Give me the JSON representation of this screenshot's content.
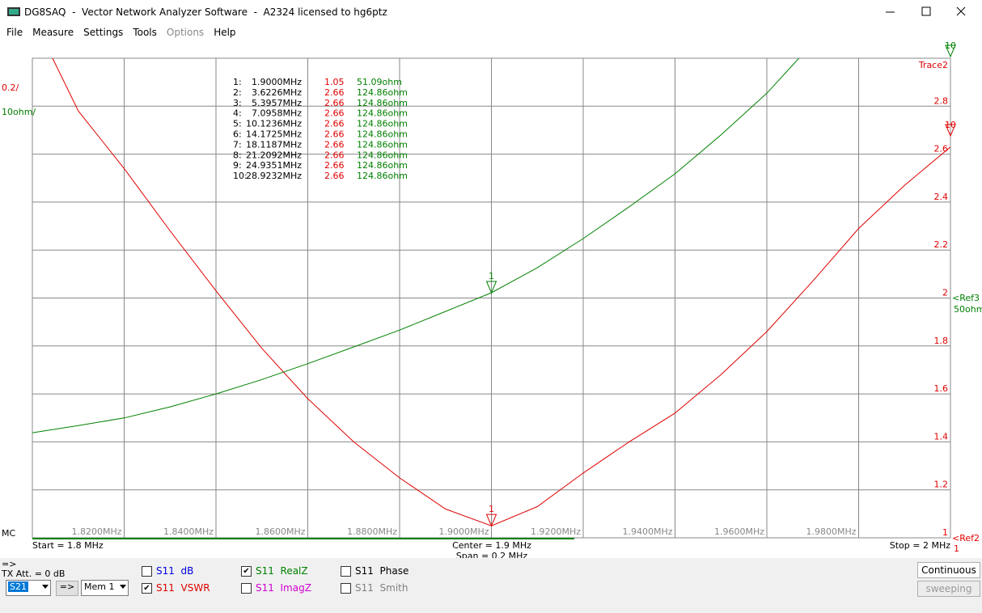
{
  "window": {
    "title": "DG8SAQ  -  Vector Network Analyzer Software  -  A2324 licensed to hg6ptz"
  },
  "menu": [
    "File",
    "Measure",
    "Settings",
    "Tools",
    "Options",
    "Help"
  ],
  "chart_data": {
    "type": "line",
    "xlim": [
      1.8,
      2.0
    ],
    "xticks": [
      {
        "value": 1.82,
        "label": "1.8200MHz"
      },
      {
        "value": 1.84,
        "label": "1.8400MHz"
      },
      {
        "value": 1.86,
        "label": "1.8600MHz"
      },
      {
        "value": 1.88,
        "label": "1.8800MHz"
      },
      {
        "value": 1.9,
        "label": "1.9000MHz"
      },
      {
        "value": 1.92,
        "label": "1.9200MHz"
      },
      {
        "value": 1.94,
        "label": "1.9400MHz"
      },
      {
        "value": 1.96,
        "label": "1.9600MHz"
      },
      {
        "value": 1.98,
        "label": "1.9800MHz"
      }
    ],
    "ylim": [
      1,
      3
    ],
    "yticks": [
      1,
      1.2,
      1.4,
      1.6,
      1.8,
      2,
      2.2,
      2.4,
      2.6,
      2.8
    ],
    "y2lim": [
      0,
      100
    ],
    "scale_labels": [
      "0.2/",
      "10ohm/"
    ],
    "trace_label": "Trace2",
    "ref3": "<Ref3",
    "ref3_value": "50ohm",
    "ref2": "<Ref2",
    "ref2_value": "1",
    "corner_label": "MC",
    "start": "Start = 1.8 MHz",
    "center": "Center = 1.9 MHz",
    "span": "Span = 0.2 MHz",
    "stop": "Stop = 2 MHz",
    "edge_markers": [
      "10",
      "10"
    ],
    "series": [
      {
        "name": "S11 VSWR",
        "color": "#e00000",
        "x": [
          1.8044,
          1.81,
          1.82,
          1.83,
          1.84,
          1.85,
          1.86,
          1.87,
          1.88,
          1.89,
          1.9,
          1.91,
          1.92,
          1.93,
          1.94,
          1.95,
          1.96,
          1.97,
          1.98,
          1.99,
          2.0
        ],
        "values": [
          3.0,
          2.78,
          2.54,
          2.28,
          2.03,
          1.79,
          1.58,
          1.4,
          1.25,
          1.12,
          1.05,
          1.13,
          1.27,
          1.4,
          1.52,
          1.68,
          1.86,
          2.07,
          2.29,
          2.47,
          2.63
        ]
      },
      {
        "name": "S11 RealZ",
        "color": "#008000",
        "axis": "y2",
        "x": [
          1.8,
          1.81,
          1.82,
          1.83,
          1.84,
          1.85,
          1.86,
          1.87,
          1.88,
          1.89,
          1.9,
          1.91,
          1.92,
          1.93,
          1.94,
          1.95,
          1.96,
          1.967
        ],
        "values": [
          21.9,
          23.4,
          25.0,
          27.3,
          30.0,
          33.0,
          36.3,
          39.8,
          43.3,
          47.2,
          51.1,
          56.3,
          62.4,
          69.0,
          75.9,
          84.0,
          92.7,
          100
        ]
      }
    ],
    "markers": [
      {
        "label": "1",
        "x": 1.9
      }
    ],
    "marker_table": [
      [
        "1:",
        "1.9000MHz",
        "1.05",
        "51.09ohm"
      ],
      [
        "2:",
        "3.6226MHz",
        "2.66",
        "124.86ohm"
      ],
      [
        "3:",
        "5.3957MHz",
        "2.66",
        "124.86ohm"
      ],
      [
        "4:",
        "7.0958MHz",
        "2.66",
        "124.86ohm"
      ],
      [
        "5:",
        "10.1236MHz",
        "2.66",
        "124.86ohm"
      ],
      [
        "6:",
        "14.1725MHz",
        "2.66",
        "124.86ohm"
      ],
      [
        "7:",
        "18.1187MHz",
        "2.66",
        "124.86ohm"
      ],
      [
        "8:",
        "21.2092MHz",
        "2.66",
        "124.86ohm"
      ],
      [
        "9:",
        "24.9351MHz",
        "2.66",
        "124.86ohm"
      ],
      [
        "10:",
        "28.9232MHz",
        "2.66",
        "124.86ohm"
      ]
    ]
  },
  "controls": {
    "arrow": "=>",
    "tx_att": "TX Att. = 0 dB",
    "select": "S21",
    "button": "=>",
    "mem": "Mem 1",
    "checks": [
      {
        "label": "S11  dB",
        "color": "#0000e0",
        "checked": false
      },
      {
        "label": "S11  VSWR",
        "color": "#e00000",
        "checked": true
      },
      {
        "label": "S11  RealZ",
        "color": "#008000",
        "checked": true
      },
      {
        "label": "S11  ImagZ",
        "color": "#d000d0",
        "checked": false
      },
      {
        "label": "S11  Phase",
        "color": "#000000",
        "checked": false
      },
      {
        "label": "S11  Smith",
        "color": "#808080",
        "checked": false
      }
    ],
    "continuous": "Continuous",
    "sweeping": "sweeping"
  }
}
